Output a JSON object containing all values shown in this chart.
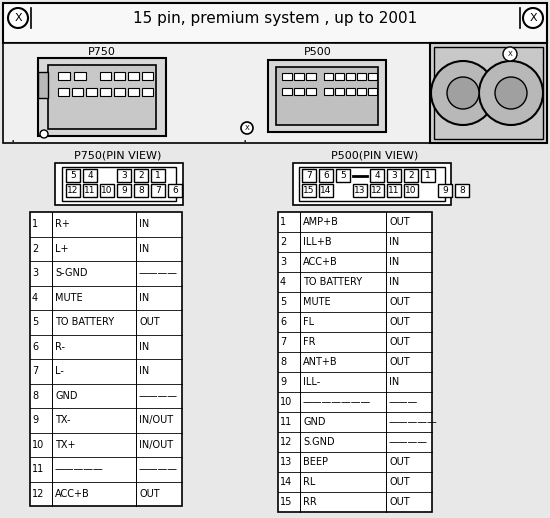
{
  "title": "15 pin, premium system , up to 2001",
  "p750_label": "P750",
  "p500_label": "P500",
  "p750_pin_view": "P750(PIN VIEW)",
  "p500_pin_view": "P500(PIN VIEW)",
  "p750_rows": [
    [
      "1",
      "R+",
      "IN"
    ],
    [
      "2",
      "L+",
      "IN"
    ],
    [
      "3",
      "S-GND",
      "————"
    ],
    [
      "4",
      "MUTE",
      "IN"
    ],
    [
      "5",
      "TO BATTERY",
      "OUT"
    ],
    [
      "6",
      "R-",
      "IN"
    ],
    [
      "7",
      "L-",
      "IN"
    ],
    [
      "8",
      "GND",
      "————"
    ],
    [
      "9",
      "TX-",
      "IN/OUT"
    ],
    [
      "10",
      "TX+",
      "IN/OUT"
    ],
    [
      "11",
      "—————",
      "————"
    ],
    [
      "12",
      "ACC+B",
      "OUT"
    ]
  ],
  "p500_rows": [
    [
      "1",
      "AMP+B",
      "OUT"
    ],
    [
      "2",
      "ILL+B",
      "IN"
    ],
    [
      "3",
      "ACC+B",
      "IN"
    ],
    [
      "4",
      "TO BATTERY",
      "IN"
    ],
    [
      "5",
      "MUTE",
      "OUT"
    ],
    [
      "6",
      "FL",
      "OUT"
    ],
    [
      "7",
      "FR",
      "OUT"
    ],
    [
      "8",
      "ANT+B",
      "OUT"
    ],
    [
      "9",
      "ILL-",
      "IN"
    ],
    [
      "10",
      "———————",
      "———"
    ],
    [
      "11",
      "GND",
      "—————"
    ],
    [
      "12",
      "S.GND",
      "————"
    ],
    [
      "13",
      "BEEP",
      "OUT"
    ],
    [
      "14",
      "RL",
      "OUT"
    ],
    [
      "15",
      "RR",
      "OUT"
    ]
  ],
  "bg_color": "#e8e8e8",
  "white": "#ffffff",
  "black": "#000000"
}
